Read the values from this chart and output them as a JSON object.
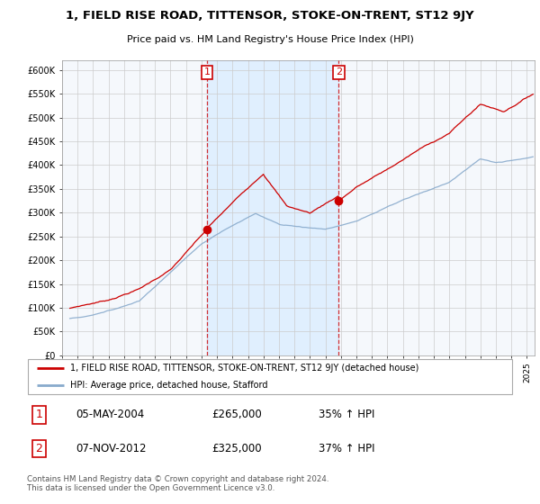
{
  "title1": "1, FIELD RISE ROAD, TITTENSOR, STOKE-ON-TRENT, ST12 9JY",
  "title2": "Price paid vs. HM Land Registry's House Price Index (HPI)",
  "legend_line1": "1, FIELD RISE ROAD, TITTENSOR, STOKE-ON-TRENT, ST12 9JY (detached house)",
  "legend_line2": "HPI: Average price, detached house, Stafford",
  "annotation1_label": "1",
  "annotation1_date": "05-MAY-2004",
  "annotation1_price": "£265,000",
  "annotation1_hpi": "35% ↑ HPI",
  "annotation2_label": "2",
  "annotation2_date": "07-NOV-2012",
  "annotation2_price": "£325,000",
  "annotation2_hpi": "37% ↑ HPI",
  "footer": "Contains HM Land Registry data © Crown copyright and database right 2024.\nThis data is licensed under the Open Government Licence v3.0.",
  "red_color": "#cc0000",
  "blue_color": "#88aacc",
  "vline_color": "#cc0000",
  "shade_color": "#ddeeff",
  "bg_color": "#f0f4f8",
  "grid_color": "#cccccc",
  "ylim": [
    0,
    620000
  ],
  "yticks": [
    0,
    50000,
    100000,
    150000,
    200000,
    250000,
    300000,
    350000,
    400000,
    450000,
    500000,
    550000,
    600000
  ],
  "ytick_labels": [
    "£0",
    "£50K",
    "£100K",
    "£150K",
    "£200K",
    "£250K",
    "£300K",
    "£350K",
    "£400K",
    "£450K",
    "£500K",
    "£550K",
    "£600K"
  ],
  "sale1_x": 2004.35,
  "sale1_y": 265000,
  "sale2_x": 2012.85,
  "sale2_y": 325000,
  "xmin": 1995.5,
  "xmax": 2025.5
}
